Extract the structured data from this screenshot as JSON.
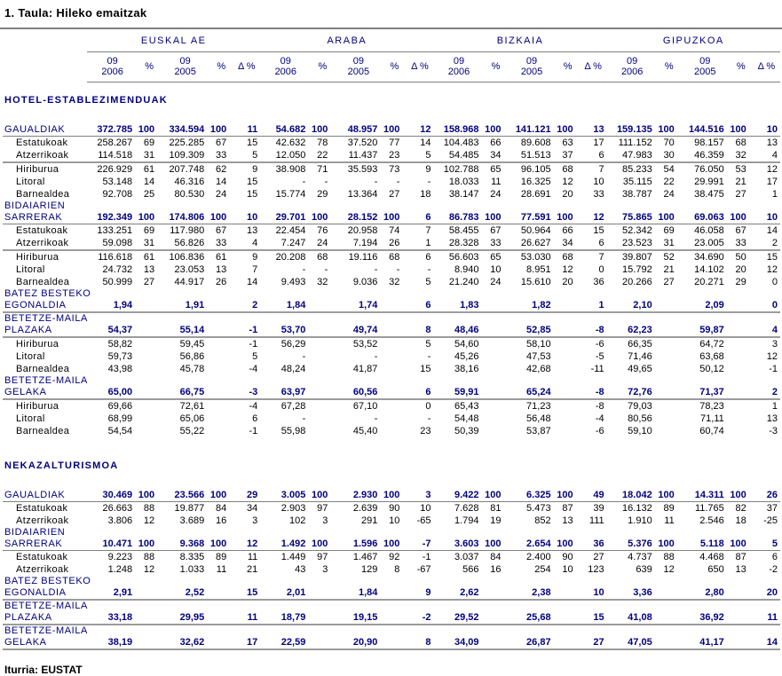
{
  "page": {
    "title": "1. Taula: Hileko emaitzak",
    "source": "Iturria: EUSTAT"
  },
  "colors": {
    "accent_navy": "#000080",
    "text_black": "#000000",
    "rule_gray": "#808080"
  },
  "table": {
    "column_groups": [
      "EUSKAL AE",
      "ARABA",
      "BIZKAIA",
      "GIPUZKOA"
    ],
    "subcolumns": [
      [
        "09",
        "2006"
      ],
      [
        "%"
      ],
      [
        "09",
        "2005"
      ],
      [
        "%"
      ],
      [
        "Δ %"
      ]
    ],
    "sections": [
      {
        "title": "HOTEL-ESTABLEZIMENDUAK",
        "rows": [
          {
            "label_lines": [
              "GAUALDIAK"
            ],
            "indent": false,
            "total": true,
            "rule": "thin",
            "values": [
              "372.785",
              "100",
              "334.594",
              "100",
              "11",
              "54.682",
              "100",
              "48.957",
              "100",
              "12",
              "158.968",
              "100",
              "141.121",
              "100",
              "13",
              "159.135",
              "100",
              "144.516",
              "100",
              "10"
            ]
          },
          {
            "label_lines": [
              "Estatukoak"
            ],
            "indent": true,
            "total": false,
            "rule": null,
            "values": [
              "258.267",
              "69",
              "225.285",
              "67",
              "15",
              "42.632",
              "78",
              "37.520",
              "77",
              "14",
              "104.483",
              "66",
              "89.608",
              "63",
              "17",
              "111.152",
              "70",
              "98.157",
              "68",
              "13"
            ]
          },
          {
            "label_lines": [
              "Atzerrikoak"
            ],
            "indent": true,
            "total": false,
            "rule": "thick",
            "values": [
              "114.518",
              "31",
              "109.309",
              "33",
              "5",
              "12.050",
              "22",
              "11.437",
              "23",
              "5",
              "54.485",
              "34",
              "51.513",
              "37",
              "6",
              "47.983",
              "30",
              "46.359",
              "32",
              "4"
            ]
          },
          {
            "label_lines": [
              "Hiriburua"
            ],
            "indent": true,
            "total": false,
            "rule": null,
            "values": [
              "226.929",
              "61",
              "207.748",
              "62",
              "9",
              "38.908",
              "71",
              "35.593",
              "73",
              "9",
              "102.788",
              "65",
              "96.105",
              "68",
              "7",
              "85.233",
              "54",
              "76.050",
              "53",
              "12"
            ]
          },
          {
            "label_lines": [
              "Litoral"
            ],
            "indent": true,
            "total": false,
            "rule": null,
            "values": [
              "53.148",
              "14",
              "46.316",
              "14",
              "15",
              "-",
              "-",
              "-",
              "-",
              "-",
              "18.033",
              "11",
              "16.325",
              "12",
              "10",
              "35.115",
              "22",
              "29.991",
              "21",
              "17"
            ]
          },
          {
            "label_lines": [
              "Barnealdea"
            ],
            "indent": true,
            "total": false,
            "rule": null,
            "values": [
              "92.708",
              "25",
              "80.530",
              "24",
              "15",
              "15.774",
              "29",
              "13.364",
              "27",
              "18",
              "38.147",
              "24",
              "28.691",
              "20",
              "33",
              "38.787",
              "24",
              "38.475",
              "27",
              "1"
            ]
          },
          {
            "label_lines": [
              "BIDAIARIEN",
              "SARRERAK"
            ],
            "indent": false,
            "total": true,
            "rule": "thin",
            "values": [
              "192.349",
              "100",
              "174.806",
              "100",
              "10",
              "29.701",
              "100",
              "28.152",
              "100",
              "6",
              "86.783",
              "100",
              "77.591",
              "100",
              "12",
              "75.865",
              "100",
              "69.063",
              "100",
              "10"
            ]
          },
          {
            "label_lines": [
              "Estatukoak"
            ],
            "indent": true,
            "total": false,
            "rule": null,
            "values": [
              "133.251",
              "69",
              "117.980",
              "67",
              "13",
              "22.454",
              "76",
              "20.958",
              "74",
              "7",
              "58.455",
              "67",
              "50.964",
              "66",
              "15",
              "52.342",
              "69",
              "46.058",
              "67",
              "14"
            ]
          },
          {
            "label_lines": [
              "Atzerrikoak"
            ],
            "indent": true,
            "total": false,
            "rule": "thick",
            "values": [
              "59.098",
              "31",
              "56.826",
              "33",
              "4",
              "7.247",
              "24",
              "7.194",
              "26",
              "1",
              "28.328",
              "33",
              "26.627",
              "34",
              "6",
              "23.523",
              "31",
              "23.005",
              "33",
              "2"
            ]
          },
          {
            "label_lines": [
              "Hiriburua"
            ],
            "indent": true,
            "total": false,
            "rule": null,
            "values": [
              "116.618",
              "61",
              "106.836",
              "61",
              "9",
              "20.208",
              "68",
              "19.116",
              "68",
              "6",
              "56.603",
              "65",
              "53.030",
              "68",
              "7",
              "39.807",
              "52",
              "34.690",
              "50",
              "15"
            ]
          },
          {
            "label_lines": [
              "Litoral"
            ],
            "indent": true,
            "total": false,
            "rule": null,
            "values": [
              "24.732",
              "13",
              "23.053",
              "13",
              "7",
              "-",
              "-",
              "-",
              "-",
              "-",
              "8.940",
              "10",
              "8.951",
              "12",
              "0",
              "15.792",
              "21",
              "14.102",
              "20",
              "12"
            ]
          },
          {
            "label_lines": [
              "Barnealdea"
            ],
            "indent": true,
            "total": false,
            "rule": null,
            "values": [
              "50.999",
              "27",
              "44.917",
              "26",
              "14",
              "9.493",
              "32",
              "9.036",
              "32",
              "5",
              "21.240",
              "24",
              "15.610",
              "20",
              "36",
              "20.266",
              "27",
              "20.271",
              "29",
              "0"
            ]
          },
          {
            "label_lines": [
              "BATEZ BESTEKO",
              "EGONALDIA"
            ],
            "indent": false,
            "total": true,
            "rule": "thick",
            "values": [
              "1,94",
              "",
              "1,91",
              "",
              "2",
              "1,84",
              "",
              "1,74",
              "",
              "6",
              "1,83",
              "",
              "1,82",
              "",
              "1",
              "2,10",
              "",
              "2,09",
              "",
              "0"
            ]
          },
          {
            "label_lines": [
              "BETETZE-MAILA",
              "PLAZAKA"
            ],
            "indent": false,
            "total": true,
            "rule": "thick",
            "values": [
              "54,37",
              "",
              "55,14",
              "",
              "-1",
              "53,70",
              "",
              "49,74",
              "",
              "8",
              "48,46",
              "",
              "52,85",
              "",
              "-8",
              "62,23",
              "",
              "59,87",
              "",
              "4"
            ]
          },
          {
            "label_lines": [
              "Hiriburua"
            ],
            "indent": true,
            "total": false,
            "rule": null,
            "values": [
              "58,82",
              "",
              "59,45",
              "",
              "-1",
              "56,29",
              "",
              "53,52",
              "",
              "5",
              "54,60",
              "",
              "58,10",
              "",
              "-6",
              "66,35",
              "",
              "64,72",
              "",
              "3"
            ]
          },
          {
            "label_lines": [
              "Litoral"
            ],
            "indent": true,
            "total": false,
            "rule": null,
            "values": [
              "59,73",
              "",
              "56,86",
              "",
              "5",
              "-",
              "",
              "-",
              "",
              "-",
              "45,26",
              "",
              "47,53",
              "",
              "-5",
              "71,46",
              "",
              "63,68",
              "",
              "12"
            ]
          },
          {
            "label_lines": [
              "Barnealdea"
            ],
            "indent": true,
            "total": false,
            "rule": null,
            "values": [
              "43,98",
              "",
              "45,78",
              "",
              "-4",
              "48,24",
              "",
              "41,87",
              "",
              "15",
              "38,16",
              "",
              "42,68",
              "",
              "-11",
              "49,65",
              "",
              "50,12",
              "",
              "-1"
            ]
          },
          {
            "label_lines": [
              "BETETZE-MAILA",
              "GELAKA"
            ],
            "indent": false,
            "total": true,
            "rule": "thick",
            "values": [
              "65,00",
              "",
              "66,75",
              "",
              "-3",
              "63,97",
              "",
              "60,56",
              "",
              "6",
              "59,91",
              "",
              "65,24",
              "",
              "-8",
              "72,76",
              "",
              "71,37",
              "",
              "2"
            ]
          },
          {
            "label_lines": [
              "Hiriburua"
            ],
            "indent": true,
            "total": false,
            "rule": null,
            "values": [
              "69,66",
              "",
              "72,61",
              "",
              "-4",
              "67,28",
              "",
              "67,10",
              "",
              "0",
              "65,43",
              "",
              "71,23",
              "",
              "-8",
              "79,03",
              "",
              "78,23",
              "",
              "1"
            ]
          },
          {
            "label_lines": [
              "Litoral"
            ],
            "indent": true,
            "total": false,
            "rule": null,
            "values": [
              "68,99",
              "",
              "65,06",
              "",
              "6",
              "-",
              "",
              "-",
              "",
              "-",
              "54,48",
              "",
              "56,48",
              "",
              "-4",
              "80,56",
              "",
              "71,11",
              "",
              "13"
            ]
          },
          {
            "label_lines": [
              "Barnealdea"
            ],
            "indent": true,
            "total": false,
            "rule": null,
            "values": [
              "54,54",
              "",
              "55,22",
              "",
              "-1",
              "55,98",
              "",
              "45,40",
              "",
              "23",
              "50,39",
              "",
              "53,87",
              "",
              "-6",
              "59,10",
              "",
              "60,74",
              "",
              "-3"
            ]
          }
        ]
      },
      {
        "title": "NEKAZALTURISMOA",
        "rows": [
          {
            "label_lines": [
              "GAUALDIAK"
            ],
            "indent": false,
            "total": true,
            "rule": "thin",
            "values": [
              "30.469",
              "100",
              "23.566",
              "100",
              "29",
              "3.005",
              "100",
              "2.930",
              "100",
              "3",
              "9.422",
              "100",
              "6.325",
              "100",
              "49",
              "18.042",
              "100",
              "14.311",
              "100",
              "26"
            ]
          },
          {
            "label_lines": [
              "Estatukoak"
            ],
            "indent": true,
            "total": false,
            "rule": null,
            "values": [
              "26.663",
              "88",
              "19.877",
              "84",
              "34",
              "2.903",
              "97",
              "2.639",
              "90",
              "10",
              "7.628",
              "81",
              "5.473",
              "87",
              "39",
              "16.132",
              "89",
              "11.765",
              "82",
              "37"
            ]
          },
          {
            "label_lines": [
              "Atzerrikoak"
            ],
            "indent": true,
            "total": false,
            "rule": null,
            "values": [
              "3.806",
              "12",
              "3.689",
              "16",
              "3",
              "102",
              "3",
              "291",
              "10",
              "-65",
              "1.794",
              "19",
              "852",
              "13",
              "111",
              "1.910",
              "11",
              "2.546",
              "18",
              "-25"
            ]
          },
          {
            "label_lines": [
              "BIDAIARIEN",
              "SARRERAK"
            ],
            "indent": false,
            "total": true,
            "rule": "thin",
            "values": [
              "10.471",
              "100",
              "9.368",
              "100",
              "12",
              "1.492",
              "100",
              "1.596",
              "100",
              "-7",
              "3.603",
              "100",
              "2.654",
              "100",
              "36",
              "5.376",
              "100",
              "5.118",
              "100",
              "5"
            ]
          },
          {
            "label_lines": [
              "Estatukoak"
            ],
            "indent": true,
            "total": false,
            "rule": null,
            "values": [
              "9.223",
              "88",
              "8.335",
              "89",
              "11",
              "1.449",
              "97",
              "1.467",
              "92",
              "-1",
              "3.037",
              "84",
              "2.400",
              "90",
              "27",
              "4.737",
              "88",
              "4.468",
              "87",
              "6"
            ]
          },
          {
            "label_lines": [
              "Atzerrikoak"
            ],
            "indent": true,
            "total": false,
            "rule": null,
            "values": [
              "1.248",
              "12",
              "1.033",
              "11",
              "21",
              "43",
              "3",
              "129",
              "8",
              "-67",
              "566",
              "16",
              "254",
              "10",
              "123",
              "639",
              "12",
              "650",
              "13",
              "-2"
            ]
          },
          {
            "label_lines": [
              "BATEZ BESTEKO",
              "EGONALDIA"
            ],
            "indent": false,
            "total": true,
            "rule": "thick",
            "values": [
              "2,91",
              "",
              "2,52",
              "",
              "15",
              "2,01",
              "",
              "1,84",
              "",
              "9",
              "2,62",
              "",
              "2,38",
              "",
              "10",
              "3,36",
              "",
              "2,80",
              "",
              "20"
            ]
          },
          {
            "label_lines": [
              "BETETZE-MAILA",
              "PLAZAKA"
            ],
            "indent": false,
            "total": true,
            "rule": "thick",
            "values": [
              "33,18",
              "",
              "29,95",
              "",
              "11",
              "18,79",
              "",
              "19,15",
              "",
              "-2",
              "29,52",
              "",
              "25,68",
              "",
              "15",
              "41,08",
              "",
              "36,92",
              "",
              "11"
            ]
          },
          {
            "label_lines": [
              "BETETZE-MAILA",
              "GELAKA"
            ],
            "indent": false,
            "total": true,
            "rule": "thick",
            "values": [
              "38,19",
              "",
              "32,62",
              "",
              "17",
              "22,59",
              "",
              "20,90",
              "",
              "8",
              "34,09",
              "",
              "26,87",
              "",
              "27",
              "47,05",
              "",
              "41,17",
              "",
              "14"
            ]
          }
        ]
      }
    ]
  }
}
